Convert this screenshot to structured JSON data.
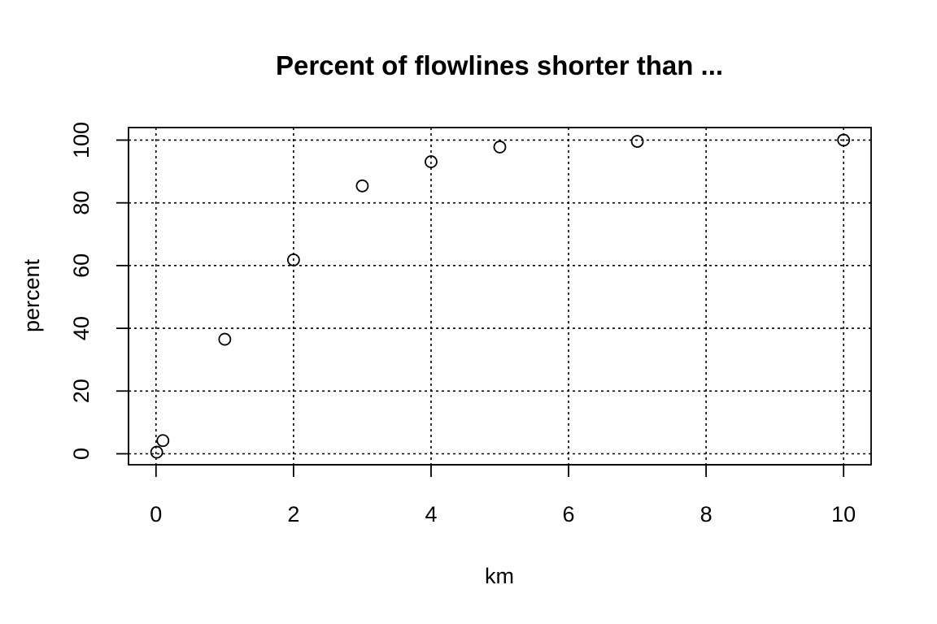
{
  "chart_data": {
    "type": "scatter",
    "title": "Percent of flowlines shorter than ...",
    "xlabel": "km",
    "ylabel": "percent",
    "xlim": [
      -0.4,
      10.4
    ],
    "ylim": [
      -3.5,
      104
    ],
    "x_ticks": [
      0,
      2,
      4,
      6,
      8,
      10
    ],
    "y_ticks": [
      0,
      20,
      40,
      60,
      80,
      100
    ],
    "grid": true,
    "legend": "none",
    "series": [
      {
        "x": [
          0.01,
          0.1,
          1,
          2,
          3,
          4,
          5,
          7,
          10
        ],
        "y": [
          0.5,
          4.2,
          36.5,
          61.8,
          85.4,
          93.1,
          97.8,
          99.6,
          100
        ]
      }
    ]
  }
}
